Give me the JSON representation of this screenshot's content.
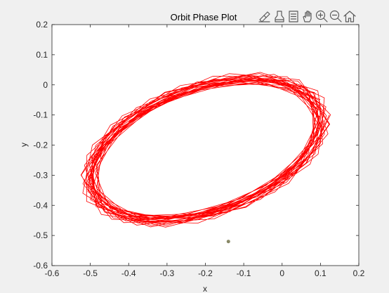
{
  "chart_data": {
    "type": "line",
    "title": "Orbit Phase Plot",
    "xlabel": "x",
    "ylabel": "y",
    "xlim": [
      -0.6,
      0.2
    ],
    "ylim": [
      -0.6,
      0.2
    ],
    "xticks": [
      -0.6,
      -0.5,
      -0.4,
      -0.3,
      -0.2,
      -0.1,
      0,
      0.1,
      0.2
    ],
    "yticks": [
      -0.6,
      -0.5,
      -0.4,
      -0.3,
      -0.2,
      -0.1,
      0,
      0.1,
      0.2
    ],
    "xtick_labels": [
      "-0.6",
      "-0.5",
      "-0.4",
      "-0.3",
      "-0.2",
      "-0.1",
      "0",
      "0.1",
      "0.2"
    ],
    "ytick_labels": [
      "-0.6",
      "-0.5",
      "-0.4",
      "-0.3",
      "-0.2",
      "-0.1",
      "0",
      "0.1",
      "0.2"
    ],
    "grid": false,
    "series": [
      {
        "color": "#ff0000",
        "orbit": {
          "center": [
            -0.2,
            -0.215
          ],
          "semi_major": 0.335,
          "semi_minor": 0.205,
          "tilt_deg": 29,
          "loops": 24,
          "band_width": 0.03
        }
      }
    ],
    "marker": {
      "x": -0.14,
      "y": -0.52,
      "color": "#888866"
    }
  },
  "toolbar": {
    "icons": [
      "brush-icon",
      "data-tips-icon",
      "legend-icon",
      "pan-hand-icon",
      "zoom-in-icon",
      "zoom-out-icon",
      "home-icon"
    ]
  },
  "colors": {
    "figure_background": "#f0f0f0",
    "axes_background": "#ffffff",
    "axes_line": "#262626",
    "orbit": "#ff0000"
  }
}
